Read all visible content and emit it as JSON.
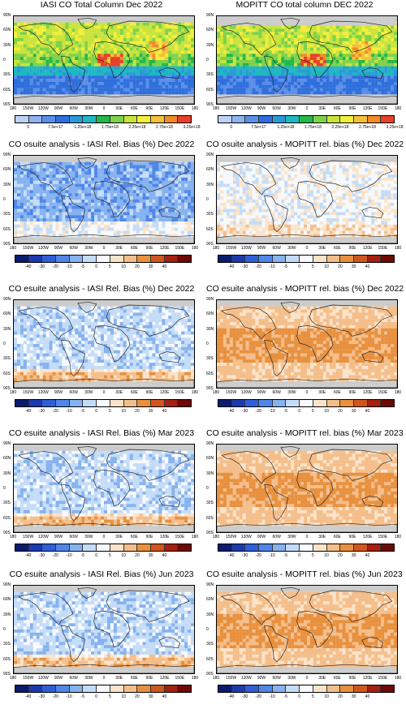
{
  "titles": {
    "r0c0": "IASI CO Total Column Dec 2022",
    "r0c1": "MOPITT CO total column DEC 2022",
    "r1c0": "CO osuite analysis - IASI Rel. Bias (%) Dec 2022",
    "r1c1": "CO osuite analysis - MOPITT rel. bias (%) Dec 2022",
    "r2c0": "CO esuite analysis - IASI Rel. Bias (%) Dec 2022",
    "r2c1": "CO esuite analysis - MOPITT rel. bias (%) Dec 2022",
    "r3c0": "CO esuite analysis - IASI Rel. Bias (%) Mar 2023",
    "r3c1": "CO esuite analysis - MOPITT rel. bias (%) Mar 2023",
    "r4c0": "CO esuite analysis - IASI Rel. Bias (%) Jun 2023",
    "r4c1": "CO esuite analysis - MOPITT rel. bias (%) Jun 2023"
  },
  "lat_labels": [
    "90N",
    "60N",
    "30N",
    "0",
    "30S",
    "60S",
    "90S"
  ],
  "lon_labels": [
    "180",
    "150W",
    "120W",
    "90W",
    "60W",
    "30W",
    "0",
    "30E",
    "60E",
    "90E",
    "120E",
    "150E",
    "180"
  ],
  "colorbars": {
    "total_column": {
      "labels": [
        "0",
        "7.5e+17",
        "1.25e+18",
        "1.75e+18",
        "2.25e+18",
        "2.75e+18",
        "3.25e+18"
      ],
      "colors": [
        "#bcd2f5",
        "#8fb4f0",
        "#5a8fe8",
        "#2f6fdc",
        "#2a9ad6",
        "#1fb7c2",
        "#23b84a",
        "#7ed24a",
        "#c8e43c",
        "#f3ee3a",
        "#f5c03a",
        "#f08a2a",
        "#e8402a"
      ]
    },
    "bias": {
      "labels": [
        "-40",
        "-30",
        "-20",
        "-10",
        "-5",
        "0",
        "5",
        "10",
        "20",
        "30",
        "40"
      ],
      "colors": [
        "#0b1c6e",
        "#1c3ab0",
        "#2f5fd8",
        "#4f86e8",
        "#86b2f0",
        "#c4dcf7",
        "#f6f9fd",
        "#fbe3c9",
        "#f4be8a",
        "#e8903e",
        "#d0561e",
        "#a42010",
        "#6e0a06"
      ]
    }
  },
  "chart_data": [
    {
      "type": "heatmap",
      "title": "IASI CO Total Column Dec 2022",
      "colorbar": [
        "0",
        "7.5e+17",
        "1.25e+18",
        "1.75e+18",
        "2.25e+18",
        "2.75e+18",
        "3.25e+18"
      ]
    },
    {
      "type": "heatmap",
      "title": "MOPITT CO total column DEC 2022",
      "colorbar": [
        "0",
        "7.5e+17",
        "1.25e+18",
        "1.75e+18",
        "2.25e+18",
        "2.75e+18",
        "3.25e+18"
      ]
    },
    {
      "type": "heatmap",
      "title": "CO osuite analysis - IASI Rel. Bias (%) Dec 2022",
      "colorbar": [
        "-40",
        "-30",
        "-20",
        "-10",
        "-5",
        "0",
        "5",
        "10",
        "20",
        "30",
        "40"
      ]
    },
    {
      "type": "heatmap",
      "title": "CO osuite analysis - MOPITT rel. bias (%) Dec 2022",
      "colorbar": [
        "-40",
        "-30",
        "-20",
        "-10",
        "-5",
        "0",
        "5",
        "10",
        "20",
        "30",
        "40"
      ]
    },
    {
      "type": "heatmap",
      "title": "CO esuite analysis - IASI Rel. Bias (%) Dec 2022",
      "colorbar": [
        "-40",
        "-30",
        "-20",
        "-10",
        "-5",
        "0",
        "5",
        "10",
        "20",
        "30",
        "40"
      ]
    },
    {
      "type": "heatmap",
      "title": "CO esuite analysis - MOPITT rel. bias (%) Dec 2022",
      "colorbar": [
        "-40",
        "-30",
        "-20",
        "-10",
        "-5",
        "0",
        "5",
        "10",
        "20",
        "30",
        "40"
      ]
    },
    {
      "type": "heatmap",
      "title": "CO esuite analysis - IASI Rel. Bias (%) Mar 2023",
      "colorbar": [
        "-40",
        "-30",
        "-20",
        "-10",
        "-5",
        "0",
        "5",
        "10",
        "20",
        "30",
        "40"
      ]
    },
    {
      "type": "heatmap",
      "title": "CO esuite analysis - MOPITT rel. bias (%) Mar 2023",
      "colorbar": [
        "-40",
        "-30",
        "-20",
        "-10",
        "-5",
        "0",
        "5",
        "10",
        "20",
        "30",
        "40"
      ]
    },
    {
      "type": "heatmap",
      "title": "CO esuite analysis - IASI Rel. Bias (%) Jun 2023",
      "colorbar": [
        "-40",
        "-30",
        "-20",
        "-10",
        "-5",
        "0",
        "5",
        "10",
        "20",
        "30",
        "40"
      ]
    },
    {
      "type": "heatmap",
      "title": "CO esuite analysis - MOPITT rel. bias (%) Jun 2023",
      "colorbar": [
        "-40",
        "-30",
        "-20",
        "-10",
        "-5",
        "0",
        "5",
        "10",
        "20",
        "30",
        "40"
      ]
    }
  ]
}
